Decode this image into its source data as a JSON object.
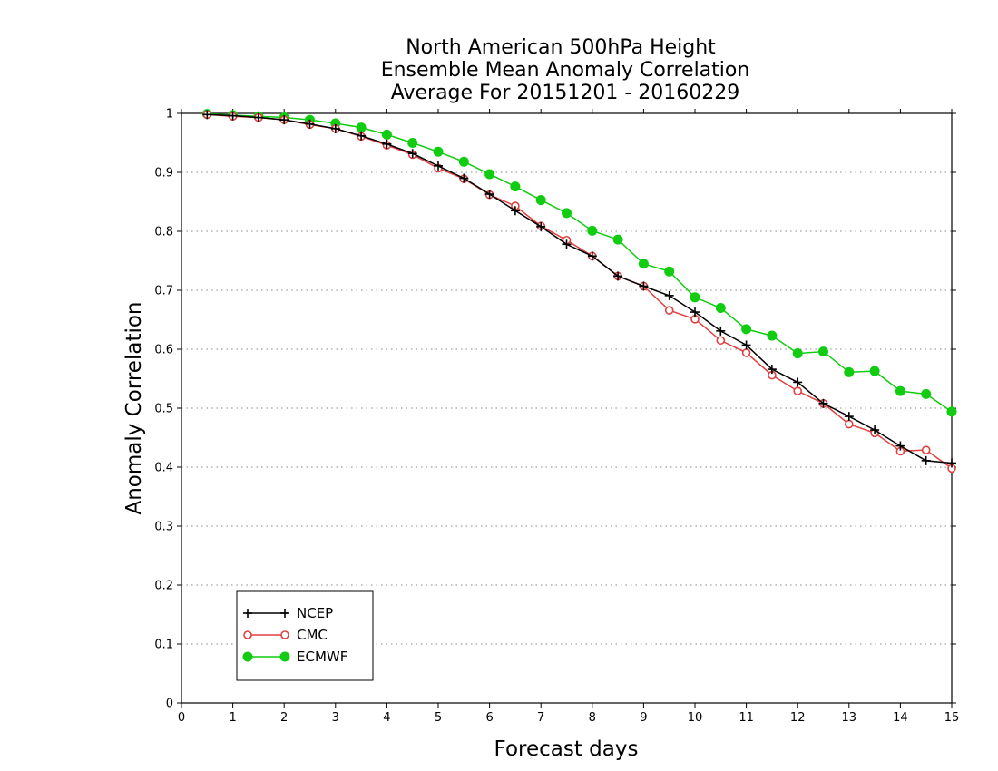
{
  "chart_data": {
    "type": "line",
    "title_lines": [
      "North American 500hPa Height",
      "Ensemble Mean Anomaly Correlation",
      "Average For 20151201 - 20160229"
    ],
    "xlabel": "Forecast days",
    "ylabel": "Anomaly Correlation",
    "xlim": [
      0,
      15
    ],
    "ylim": [
      0,
      1
    ],
    "x_ticks": [
      0,
      1,
      2,
      3,
      4,
      5,
      6,
      7,
      8,
      9,
      10,
      11,
      12,
      13,
      14,
      15
    ],
    "y_ticks": [
      0,
      0.1,
      0.2,
      0.3,
      0.4,
      0.5,
      0.6,
      0.7,
      0.8,
      0.9,
      1
    ],
    "y_tick_labels": [
      "0",
      "0.1",
      "0.2",
      "0.3",
      "0.4",
      "0.5",
      "0.6",
      "0.7",
      "0.8",
      "0.9",
      "1"
    ],
    "grid": "horizontal dotted",
    "legend_position": "bottom-left",
    "series": [
      {
        "name": "NCEP",
        "color": "#000000",
        "marker": "plus",
        "x": [
          0.5,
          1,
          1.5,
          2,
          2.5,
          3,
          3.5,
          4,
          4.5,
          5,
          5.5,
          6,
          6.5,
          7,
          7.5,
          8,
          8.5,
          9,
          9.5,
          10,
          10.5,
          11,
          11.5,
          12,
          12.5,
          13,
          13.5,
          14,
          14.5,
          15
        ],
        "values": [
          0.998,
          0.996,
          0.993,
          0.989,
          0.982,
          0.974,
          0.962,
          0.948,
          0.932,
          0.911,
          0.89,
          0.863,
          0.835,
          0.808,
          0.778,
          0.758,
          0.724,
          0.707,
          0.691,
          0.663,
          0.631,
          0.607,
          0.566,
          0.544,
          0.508,
          0.486,
          0.463,
          0.436,
          0.411,
          0.407
        ]
      },
      {
        "name": "CMC",
        "color": "#e04040",
        "marker": "open-circle",
        "x": [
          0.5,
          1,
          1.5,
          2,
          2.5,
          3,
          3.5,
          4,
          4.5,
          5,
          5.5,
          6,
          6.5,
          7,
          7.5,
          8,
          8.5,
          9,
          9.5,
          10,
          10.5,
          11,
          11.5,
          12,
          12.5,
          13,
          13.5,
          14,
          14.5,
          15
        ],
        "values": [
          0.998,
          0.995,
          0.993,
          0.989,
          0.981,
          0.974,
          0.961,
          0.946,
          0.93,
          0.907,
          0.889,
          0.862,
          0.843,
          0.809,
          0.785,
          0.758,
          0.724,
          0.707,
          0.666,
          0.651,
          0.615,
          0.594,
          0.556,
          0.529,
          0.508,
          0.473,
          0.458,
          0.427,
          0.429,
          0.398
        ]
      },
      {
        "name": "ECMWF",
        "color": "#11cc11",
        "marker": "filled-circle",
        "x": [
          0.5,
          1,
          1.5,
          2,
          2.5,
          3,
          3.5,
          4,
          4.5,
          5,
          5.5,
          6,
          6.5,
          7,
          7.5,
          8,
          8.5,
          9,
          9.5,
          10,
          10.5,
          11,
          11.5,
          12,
          12.5,
          13,
          13.5,
          14,
          14.5,
          15
        ],
        "values": [
          0.999,
          0.997,
          0.995,
          0.993,
          0.989,
          0.983,
          0.976,
          0.964,
          0.95,
          0.935,
          0.918,
          0.897,
          0.876,
          0.853,
          0.831,
          0.801,
          0.786,
          0.745,
          0.732,
          0.688,
          0.67,
          0.634,
          0.623,
          0.593,
          0.596,
          0.561,
          0.563,
          0.529,
          0.524,
          0.494
        ]
      }
    ]
  }
}
